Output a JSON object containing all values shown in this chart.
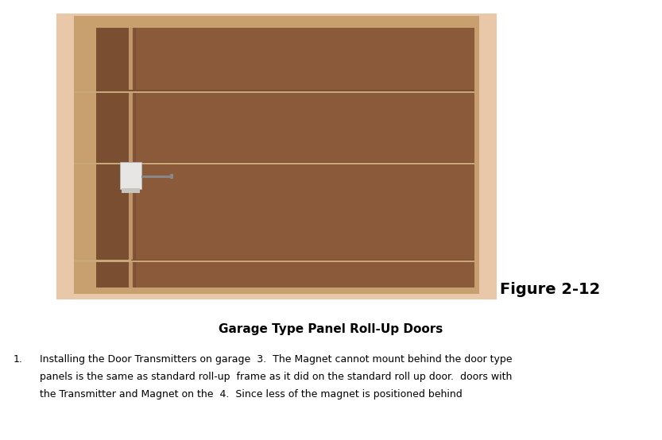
{
  "bg_color": "#ffffff",
  "fig_width": 8.33,
  "fig_height": 5.54,
  "frame_color": "#e8c8a8",
  "frame_inner_color": "#c8a070",
  "door_color": "#8b5a3a",
  "door_color2": "#7a4e30",
  "groove_color": "#c8a878",
  "vert_line_color": "#c0956a",
  "transmitter_color": "#e8e6e4",
  "transmitter_shadow": "#c8c4c0",
  "bracket_color": "#888888",
  "figure_label": "Figure 2-12",
  "figure_label_fontsize": 14,
  "title": "Garage Type Panel Roll-Up Doors",
  "title_fontsize": 11,
  "body_line1": "Installing the Door Transmitters on garage  3.  The Magnet cannot mount behind the door type",
  "body_line2": "panels is the same as standard roll-up  frame as it did on the standard roll up door.  doors with",
  "body_line3": "the Transmitter and Magnet on the  4.  Since less of the magnet is positioned behind",
  "body_fontsize": 9,
  "list_number": "1.",
  "text_color": "#000000"
}
